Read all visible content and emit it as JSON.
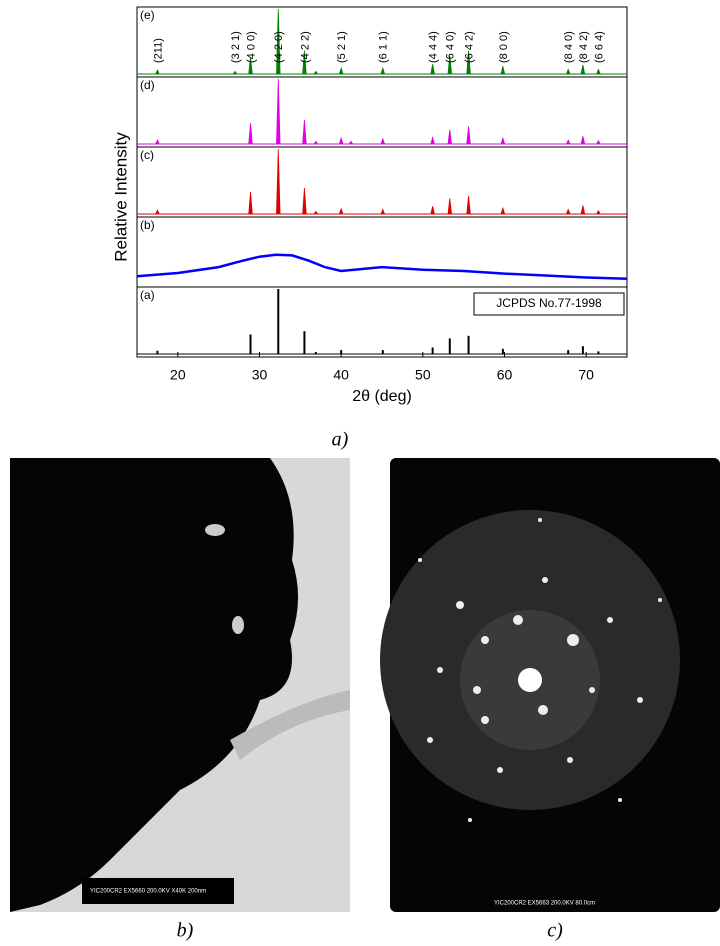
{
  "chart_data": {
    "type": "xrd-stack",
    "xlabel": "2θ (deg)",
    "ylabel": "Relative Intensity",
    "xlim": [
      15,
      75
    ],
    "xticks": [
      20,
      30,
      40,
      50,
      60,
      70
    ],
    "ylim": [
      0,
      100
    ],
    "reference_label": "JCPDS No.77-1998",
    "panels": [
      {
        "name": "(e)",
        "color": "#008000",
        "style": "peaks",
        "x": [
          17.5,
          27.0,
          28.9,
          32.3,
          35.5,
          36.9,
          40.0,
          45.1,
          51.2,
          53.3,
          55.6,
          59.8,
          67.8,
          69.6,
          71.5
        ],
        "values": [
          6,
          4,
          26,
          100,
          36,
          4,
          9,
          9,
          15,
          28,
          36,
          12,
          7,
          14,
          7
        ]
      },
      {
        "name": "(d)",
        "color": "#e000e0",
        "style": "peaks",
        "x": [
          17.5,
          28.9,
          32.3,
          35.5,
          36.9,
          40.0,
          41.2,
          45.1,
          51.2,
          53.3,
          55.6,
          59.8,
          67.8,
          69.6,
          71.5
        ],
        "values": [
          6,
          32,
          100,
          37,
          4,
          9,
          4,
          8,
          10,
          22,
          27,
          9,
          6,
          12,
          5
        ]
      },
      {
        "name": "(c)",
        "color": "#e00000",
        "style": "peaks",
        "x": [
          17.5,
          28.9,
          32.3,
          35.5,
          36.9,
          40.0,
          45.1,
          51.2,
          53.3,
          55.6,
          59.8,
          67.8,
          69.6,
          71.5
        ],
        "values": [
          6,
          34,
          100,
          40,
          4,
          8,
          7,
          12,
          24,
          28,
          9,
          7,
          13,
          5
        ]
      },
      {
        "name": "(b)",
        "color": "#0000ff",
        "style": "line",
        "x": [
          15,
          20,
          25,
          28,
          30,
          32,
          34,
          36,
          38,
          40,
          45,
          50,
          55,
          60,
          65,
          70,
          75
        ],
        "values": [
          12,
          17,
          26,
          36,
          42,
          45,
          44,
          36,
          26,
          20,
          26,
          22,
          20,
          16,
          13,
          10,
          8
        ]
      },
      {
        "name": "(a)",
        "color": "#000000",
        "style": "sticks",
        "x": [
          17.5,
          28.9,
          32.3,
          35.5,
          36.9,
          40.0,
          45.1,
          51.2,
          53.3,
          55.6,
          59.8,
          67.8,
          69.6,
          71.5
        ],
        "values": [
          5,
          30,
          100,
          35,
          3,
          6,
          6,
          10,
          24,
          28,
          8,
          6,
          12,
          4
        ]
      }
    ],
    "annotations": [
      {
        "label": "(211)",
        "x": 17.5
      },
      {
        "label": "(3 2 1)",
        "x": 27.0
      },
      {
        "label": "(4 0 0)",
        "x": 28.9
      },
      {
        "label": "(4 2 0)",
        "x": 32.3
      },
      {
        "label": "(4 2 2)",
        "x": 35.5
      },
      {
        "label": "(5 2 1)",
        "x": 40.0
      },
      {
        "label": "(6 1 1)",
        "x": 45.1
      },
      {
        "label": "(4 4 4)",
        "x": 51.2
      },
      {
        "label": "(6 4 0)",
        "x": 53.3
      },
      {
        "label": "(6 4 2)",
        "x": 55.6
      },
      {
        "label": "(8 0 0)",
        "x": 59.8
      },
      {
        "label": "(8 4 0)",
        "x": 67.8
      },
      {
        "label": "(8 4 2)",
        "x": 69.6
      },
      {
        "label": "(6 6 4)",
        "x": 71.5
      }
    ]
  },
  "captions": {
    "a": "a)",
    "b": "b)",
    "c": "c)"
  },
  "micrograph_labels": [
    "YIC200CR2 EX5660 200.0KV X40K 200nm",
    "YIC200CR2 EX5663 200.0KV 80.0cm"
  ]
}
